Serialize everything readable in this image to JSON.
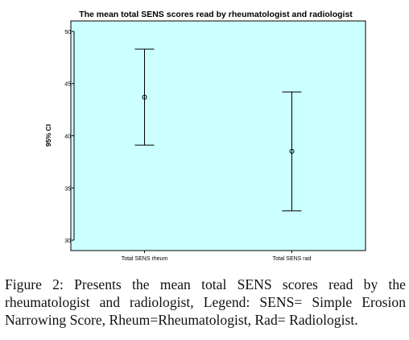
{
  "chart_data": {
    "type": "error-bar",
    "title": "The mean total SENS scores read by rheumatologist and radiologist",
    "xlabel": "",
    "ylabel": "95% CI",
    "ylim": [
      29,
      51
    ],
    "yticks": [
      30,
      35,
      40,
      45,
      50
    ],
    "categories": [
      "Total SENS rheum",
      "Total SENS rad"
    ],
    "mean": [
      43.7,
      38.5
    ],
    "lower": [
      39.1,
      32.8
    ],
    "upper": [
      48.3,
      44.2
    ],
    "plot_background": "#ccffff",
    "grid": false
  },
  "caption": {
    "label": "Figure 2:",
    "text": "Presents the mean total SENS scores read by the rheumatologist and radiologist, Legend: SENS= Simple Erosion Narrowing Score, Rheum=Rheumatologist, Rad= Radiologist."
  }
}
